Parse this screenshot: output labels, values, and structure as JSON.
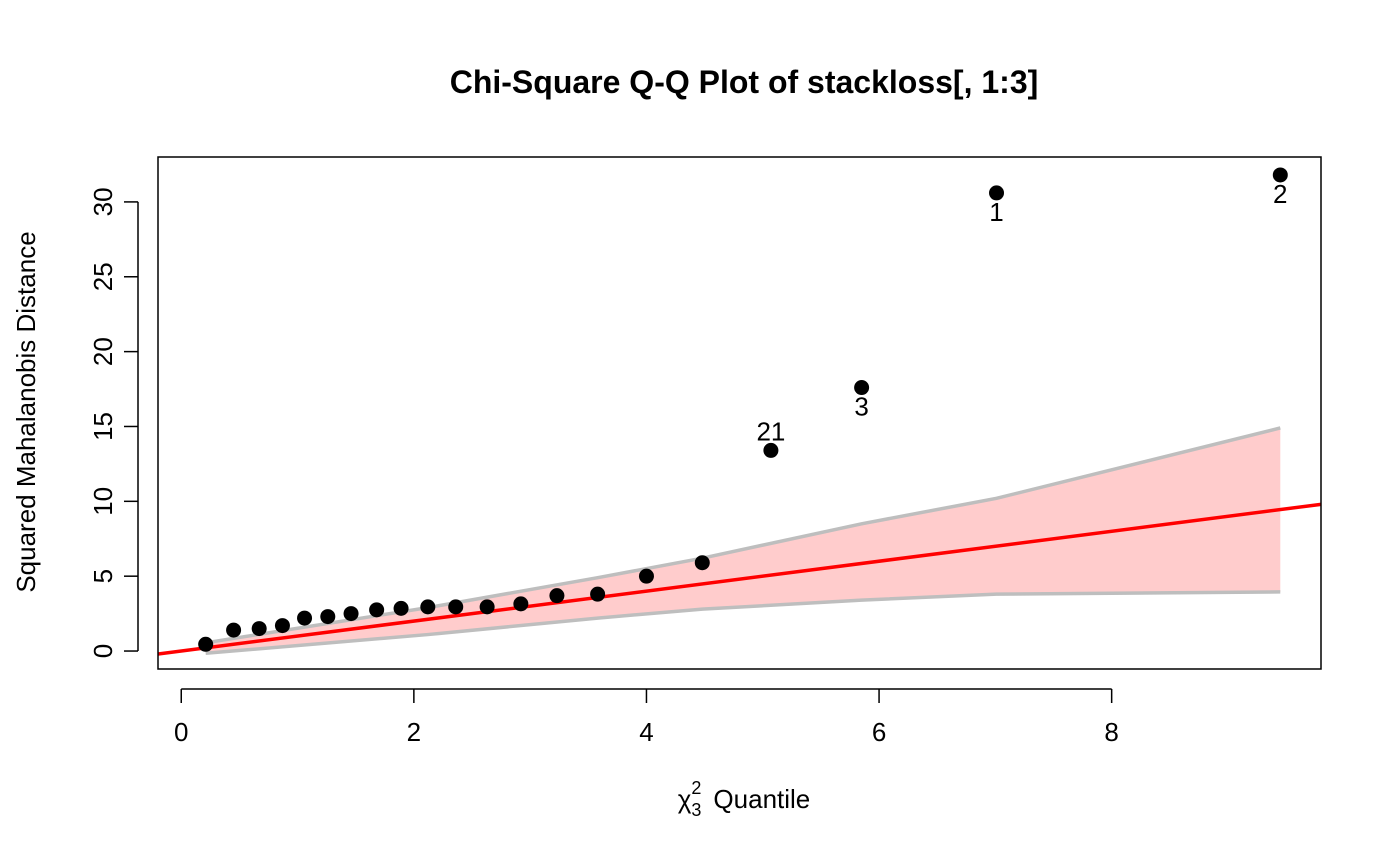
{
  "chart_data": {
    "type": "scatter",
    "title": "Chi-Square Q-Q Plot of stackloss[, 1:3]",
    "xlabel": {
      "symbol": "χ",
      "superscript": "2",
      "subscript": "3",
      "text": "Quantile"
    },
    "ylabel": "Squared Mahalanobis Distance",
    "xlim": [
      -0.2,
      9.8
    ],
    "ylim": [
      -1.2,
      33.0
    ],
    "xticks": [
      0,
      2,
      4,
      6,
      8
    ],
    "yticks": [
      0,
      5,
      10,
      15,
      20,
      25,
      30
    ],
    "grid": false,
    "colors": {
      "points": "#000000",
      "reference_line": "#ff0000",
      "envelope_fill": "#ffcccc",
      "envelope_border": "#bebebe"
    },
    "reference_line": {
      "intercept": 0,
      "slope": 1
    },
    "points": [
      {
        "x": 0.21,
        "y": 0.45
      },
      {
        "x": 0.45,
        "y": 1.4
      },
      {
        "x": 0.67,
        "y": 1.5
      },
      {
        "x": 0.87,
        "y": 1.7
      },
      {
        "x": 1.06,
        "y": 2.2
      },
      {
        "x": 1.26,
        "y": 2.3
      },
      {
        "x": 1.46,
        "y": 2.5
      },
      {
        "x": 1.68,
        "y": 2.75
      },
      {
        "x": 1.89,
        "y": 2.85
      },
      {
        "x": 2.12,
        "y": 2.95
      },
      {
        "x": 2.36,
        "y": 2.95
      },
      {
        "x": 2.63,
        "y": 2.95
      },
      {
        "x": 2.92,
        "y": 3.15
      },
      {
        "x": 3.23,
        "y": 3.7
      },
      {
        "x": 3.58,
        "y": 3.8
      },
      {
        "x": 4.0,
        "y": 5.0
      },
      {
        "x": 4.48,
        "y": 5.9
      },
      {
        "x": 5.07,
        "y": 13.4,
        "label": "21",
        "label_pos": "above"
      },
      {
        "x": 5.85,
        "y": 17.6,
        "label": "3",
        "label_pos": "below"
      },
      {
        "x": 7.01,
        "y": 30.6,
        "label": "1",
        "label_pos": "below"
      },
      {
        "x": 9.45,
        "y": 31.8,
        "label": "2",
        "label_pos": "below"
      }
    ],
    "envelope": {
      "x": [
        0.21,
        2.12,
        3.58,
        4.48,
        5.85,
        7.01,
        9.45
      ],
      "upper": [
        0.55,
        2.9,
        4.9,
        6.2,
        8.5,
        10.2,
        14.9
      ],
      "lower": [
        -0.15,
        1.1,
        2.2,
        2.8,
        3.4,
        3.8,
        3.95
      ]
    }
  }
}
